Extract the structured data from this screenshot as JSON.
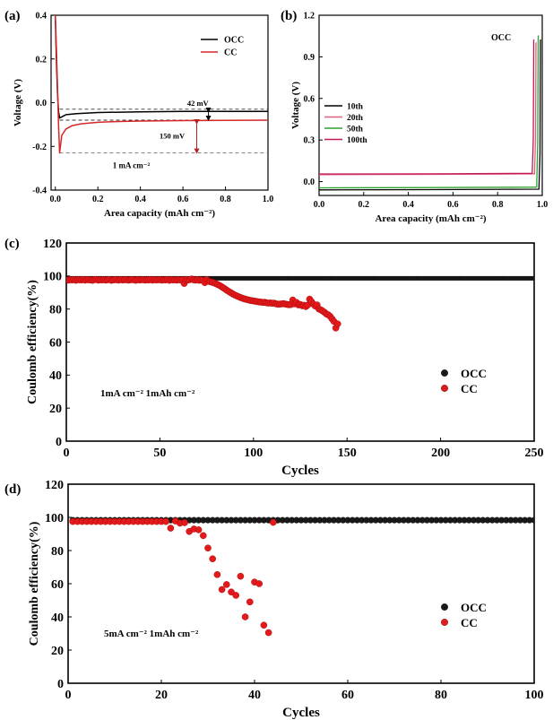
{
  "panels": {
    "a": {
      "label": "(a)"
    },
    "b": {
      "label": "(b)"
    },
    "c": {
      "label": "(c)"
    },
    "d": {
      "label": "(d)"
    }
  },
  "chart_data": [
    {
      "id": "a",
      "type": "line",
      "xlabel": "Area capacity (mAh cm⁻²)",
      "ylabel": "Voltage (V)",
      "xlim": [
        -0.02,
        1.0
      ],
      "ylim": [
        -0.4,
        0.4
      ],
      "xticks": [
        0.0,
        0.2,
        0.4,
        0.6,
        0.8,
        1.0
      ],
      "yticks": [
        -0.4,
        -0.2,
        0.0,
        0.2,
        0.4
      ],
      "xtick_labels": [
        "0.0",
        "0.2",
        "0.4",
        "0.6",
        "0.8",
        "1.0"
      ],
      "ytick_labels": [
        "-0.4",
        "-0.2",
        "0.0",
        "0.2",
        "0.4"
      ],
      "legend": [
        {
          "name": "OCC",
          "color": "#000000"
        },
        {
          "name": "CC",
          "color": "#d62728"
        }
      ],
      "series": [
        {
          "name": "OCC",
          "color": "#000000",
          "x": [
            0.0,
            0.005,
            0.01,
            0.015,
            0.02,
            0.03,
            0.05,
            0.1,
            0.2,
            0.4,
            0.6,
            0.8,
            1.0
          ],
          "y": [
            0.4,
            0.2,
            0.05,
            -0.04,
            -0.07,
            -0.065,
            -0.055,
            -0.05,
            -0.045,
            -0.042,
            -0.04,
            -0.04,
            -0.04
          ]
        },
        {
          "name": "CC",
          "color": "#d62728",
          "x": [
            0.0,
            0.005,
            0.01,
            0.015,
            0.02,
            0.03,
            0.05,
            0.08,
            0.12,
            0.2,
            0.3,
            0.4,
            0.6,
            0.8,
            1.0
          ],
          "y": [
            0.4,
            0.25,
            0.08,
            -0.1,
            -0.23,
            -0.15,
            -0.12,
            -0.105,
            -0.097,
            -0.09,
            -0.086,
            -0.084,
            -0.082,
            -0.081,
            -0.08
          ]
        }
      ],
      "reference_lines": [
        {
          "y": -0.03,
          "color": "#333333"
        },
        {
          "y": -0.08,
          "color": "#333333"
        },
        {
          "y": -0.23,
          "color": "#777777"
        }
      ],
      "annotations": [
        {
          "text": "42 mV",
          "color": "#000000"
        },
        {
          "text": "150 mV",
          "color": "#b22222"
        },
        {
          "text": "1 mA cm⁻²",
          "color": "#000000"
        }
      ]
    },
    {
      "id": "b",
      "type": "line",
      "xlabel": "Area capacity (mAh cm⁻²)",
      "ylabel": "Voltage (V)",
      "xlim": [
        0.0,
        1.0
      ],
      "ylim": [
        -0.1,
        1.2
      ],
      "xticks": [
        0.0,
        0.2,
        0.4,
        0.6,
        0.8,
        1.0
      ],
      "yticks": [
        0.0,
        0.3,
        0.6,
        0.9,
        1.2
      ],
      "xtick_labels": [
        "0.0",
        "0.2",
        "0.4",
        "0.6",
        "0.8",
        "1.0"
      ],
      "ytick_labels": [
        "0.0",
        "0.3",
        "0.6",
        "0.9",
        "1.2"
      ],
      "title_annotation": "OCC",
      "legend": [
        {
          "name": "10th",
          "color": "#000000"
        },
        {
          "name": "20th",
          "color": "#e0607e"
        },
        {
          "name": "50th",
          "color": "#2ca02c"
        },
        {
          "name": "100th",
          "color": "#c2185b"
        }
      ],
      "series": [
        {
          "name": "10th",
          "color": "#000000",
          "x": [
            0.0,
            0.5,
            0.985,
            0.99,
            0.992,
            0.995
          ],
          "y": [
            -0.06,
            -0.058,
            -0.055,
            0.2,
            1.02,
            1.02
          ]
        },
        {
          "name": "20th",
          "color": "#e0607e",
          "x": [
            0.0,
            0.5,
            0.965,
            0.97,
            0.972,
            0.975
          ],
          "y": [
            0.05,
            0.052,
            0.055,
            0.3,
            1.0,
            1.0
          ]
        },
        {
          "name": "50th",
          "color": "#2ca02c",
          "x": [
            0.0,
            0.5,
            0.975,
            0.98,
            0.982,
            0.985
          ],
          "y": [
            -0.045,
            -0.043,
            -0.04,
            0.3,
            1.05,
            1.05
          ]
        },
        {
          "name": "100th",
          "color": "#c2185b",
          "x": [
            0.0,
            0.5,
            0.955,
            0.96,
            0.962,
            0.965
          ],
          "y": [
            0.055,
            0.056,
            0.06,
            0.3,
            1.02,
            1.02
          ]
        }
      ]
    },
    {
      "id": "c",
      "type": "scatter",
      "xlabel": "Cycles",
      "ylabel": "Coulomb efficiency(%)",
      "xlim": [
        0,
        250
      ],
      "ylim": [
        0,
        120
      ],
      "xticks": [
        0,
        50,
        100,
        150,
        200,
        250
      ],
      "yticks": [
        0,
        20,
        40,
        60,
        80,
        100,
        120
      ],
      "xtick_labels": [
        "0",
        "50",
        "100",
        "150",
        "200",
        "250"
      ],
      "ytick_labels": [
        "0",
        "20",
        "40",
        "60",
        "80",
        "100",
        "120"
      ],
      "condition_text": "1mA cm⁻²   1mAh cm⁻²",
      "legend": [
        {
          "name": "OCC",
          "color": "#1a1a1a"
        },
        {
          "name": "CC",
          "color": "#e31a1c"
        }
      ],
      "series": [
        {
          "name": "OCC",
          "color": "#1a1a1a",
          "marker_radius": 2.4,
          "x_start": 1,
          "x_end": 250,
          "x_step": 1,
          "y_constant": 98.6
        },
        {
          "name": "CC",
          "color": "#e31a1c",
          "marker_radius": 3.6,
          "x": [
            1,
            2,
            3,
            4,
            5,
            6,
            7,
            8,
            9,
            10,
            11,
            12,
            13,
            14,
            15,
            16,
            17,
            18,
            19,
            20,
            21,
            22,
            23,
            24,
            25,
            26,
            27,
            28,
            29,
            30,
            31,
            32,
            33,
            34,
            35,
            36,
            37,
            38,
            39,
            40,
            41,
            42,
            43,
            44,
            45,
            46,
            47,
            48,
            49,
            50,
            51,
            52,
            53,
            54,
            55,
            56,
            57,
            58,
            59,
            60,
            61,
            62,
            63,
            64,
            65,
            66,
            67,
            68,
            69,
            70,
            71,
            72,
            73,
            74,
            75,
            76,
            77,
            78,
            79,
            80,
            81,
            82,
            83,
            84,
            85,
            86,
            87,
            88,
            89,
            90,
            91,
            92,
            93,
            94,
            95,
            96,
            97,
            98,
            99,
            100,
            101,
            102,
            103,
            104,
            105,
            106,
            107,
            108,
            109,
            110,
            111,
            112,
            113,
            114,
            115,
            116,
            117,
            118,
            119,
            120,
            121,
            122,
            123,
            124,
            125,
            126,
            127,
            128,
            129,
            130,
            131,
            132,
            133,
            134,
            135,
            136,
            137,
            138,
            139,
            140,
            141,
            142,
            143,
            144,
            145
          ],
          "y": [
            97.5,
            97.8,
            97.6,
            97.9,
            97.4,
            97.8,
            97.7,
            97.6,
            97.9,
            97.5,
            97.8,
            97.7,
            97.6,
            97.4,
            97.8,
            97.9,
            97.5,
            97.7,
            97.6,
            97.8,
            97.5,
            97.7,
            97.9,
            97.4,
            97.6,
            97.8,
            97.7,
            97.5,
            97.9,
            97.6,
            97.7,
            97.8,
            97.5,
            97.6,
            97.9,
            97.7,
            97.4,
            97.8,
            97.6,
            97.7,
            97.8,
            97.5,
            97.7,
            97.6,
            97.9,
            97.5,
            97.8,
            97.6,
            97.7,
            97.8,
            97.5,
            97.7,
            97.6,
            97.9,
            97.4,
            97.8,
            97.6,
            97.7,
            97.5,
            97.8,
            97.6,
            97.7,
            95.5,
            97.9,
            97.6,
            97.8,
            98.2,
            97.7,
            97.5,
            97.8,
            97.4,
            97.6,
            97.3,
            96.0,
            97.8,
            96.8,
            96.5,
            96.2,
            95.8,
            95.3,
            94.8,
            94.2,
            93.5,
            92.8,
            92.0,
            91.2,
            90.5,
            89.8,
            89.1,
            88.5,
            88.0,
            87.5,
            87.0,
            86.6,
            86.2,
            85.9,
            85.6,
            85.3,
            85.1,
            84.9,
            84.7,
            84.5,
            84.3,
            84.2,
            84.0,
            84.1,
            83.8,
            83.6,
            83.7,
            83.5,
            83.6,
            83.2,
            82.9,
            83.0,
            83.1,
            83.3,
            83.0,
            82.8,
            82.6,
            82.7,
            85.5,
            83.2,
            84.0,
            82.5,
            82.8,
            82.0,
            82.3,
            81.5,
            82.4,
            86.0,
            84.5,
            83.0,
            81.8,
            82.5,
            80.0,
            79.5,
            78.8,
            78.0,
            77.0,
            76.5,
            75.5,
            74.0,
            72.5,
            68.5,
            71.0
          ]
        }
      ]
    },
    {
      "id": "d",
      "type": "scatter",
      "xlabel": "Cycles",
      "ylabel": "Coulomb efficiency(%)",
      "xlim": [
        0,
        100
      ],
      "ylim": [
        0,
        120
      ],
      "xticks": [
        0,
        20,
        40,
        60,
        80,
        100
      ],
      "yticks": [
        0,
        20,
        40,
        60,
        80,
        100,
        120
      ],
      "xtick_labels": [
        "0",
        "20",
        "40",
        "60",
        "80",
        "100"
      ],
      "ytick_labels": [
        "0",
        "20",
        "40",
        "60",
        "80",
        "100",
        "120"
      ],
      "condition_text": "5mA cm⁻²   1mAh cm⁻²",
      "legend": [
        {
          "name": "OCC",
          "color": "#1a1a1a"
        },
        {
          "name": "CC",
          "color": "#e31a1c"
        }
      ],
      "series": [
        {
          "name": "OCC",
          "color": "#1a1a1a",
          "marker_radius": 3.4,
          "x_start": 1,
          "x_end": 100,
          "x_step": 1,
          "y_constant": 98.3
        },
        {
          "name": "CC",
          "color": "#e31a1c",
          "marker_radius": 3.6,
          "x": [
            1,
            2,
            3,
            4,
            5,
            6,
            7,
            8,
            9,
            10,
            11,
            12,
            13,
            14,
            15,
            16,
            17,
            18,
            19,
            20,
            21,
            22,
            23,
            24,
            25,
            26,
            27,
            28,
            29,
            30,
            31,
            32,
            33,
            34,
            35,
            36,
            37,
            38,
            39,
            40,
            41,
            42,
            43,
            44
          ],
          "y": [
            97.5,
            97.5,
            97.5,
            97.5,
            97.5,
            97.5,
            97.5,
            97.5,
            97.5,
            97.5,
            97.5,
            97.5,
            97.5,
            97.5,
            97.5,
            97.5,
            97.5,
            97.5,
            97.5,
            97.5,
            97.5,
            93.5,
            97.8,
            96.5,
            96.8,
            91.5,
            93.0,
            92.5,
            89.0,
            81.5,
            75.0,
            65.5,
            56.5,
            59.5,
            55.0,
            53.0,
            64.5,
            40.0,
            49.0,
            61.0,
            60.0,
            35.0,
            30.5,
            97.0
          ]
        }
      ]
    }
  ]
}
